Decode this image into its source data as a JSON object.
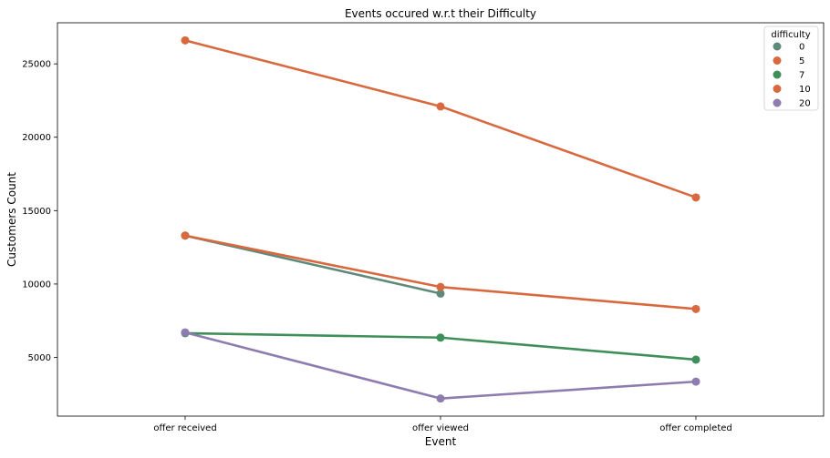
{
  "chart_data": {
    "type": "line",
    "title": "Events occured w.r.t their Difficulty",
    "xlabel": "Event",
    "ylabel": "Customers Count",
    "categories": [
      "offer received",
      "offer viewed",
      "offer completed"
    ],
    "ylim": [
      1000,
      27800
    ],
    "yticks": [
      5000,
      10000,
      15000,
      20000,
      25000
    ],
    "grid": false,
    "legend": {
      "title": "difficulty",
      "placement": "top-right"
    },
    "series": [
      {
        "name": "0",
        "color": "#5f8a7b",
        "values": [
          13300,
          9350,
          null
        ]
      },
      {
        "name": "5",
        "color": "#d8693f",
        "values": [
          13300,
          9800,
          8300
        ]
      },
      {
        "name": "7",
        "color": "#3f8f5a",
        "values": [
          6650,
          6350,
          4850
        ]
      },
      {
        "name": "10",
        "color": "#d8693f",
        "values": [
          26600,
          22100,
          15900
        ]
      },
      {
        "name": "20",
        "color": "#8e7cb0",
        "values": [
          6700,
          2200,
          3350
        ]
      }
    ]
  }
}
